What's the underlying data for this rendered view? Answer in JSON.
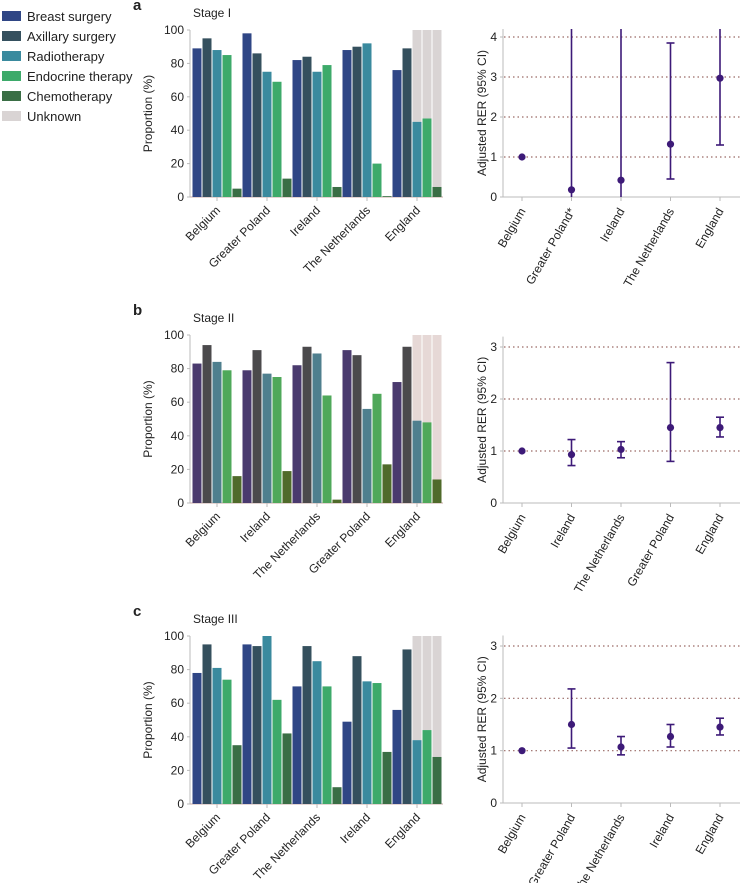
{
  "legend": {
    "items": [
      {
        "label": "Breast surgery",
        "color": "#2f4685"
      },
      {
        "label": "Axillary surgery",
        "color": "#35505e"
      },
      {
        "label": "Radiotherapy",
        "color": "#3a8a9e"
      },
      {
        "label": "Endocrine therapy",
        "color": "#3daa6a"
      },
      {
        "label": "Chemotherapy",
        "color": "#3a6e45"
      },
      {
        "label": "Unknown",
        "color": "#d9d4d4"
      }
    ]
  },
  "chart_data": [
    {
      "type": "bar",
      "panel": "a",
      "title": "Stage I",
      "ylabel": "Proportion (%)",
      "ylim": [
        0,
        100
      ],
      "yticks": [
        "0",
        "20",
        "40",
        "60",
        "80",
        "100"
      ],
      "categories": [
        "Belgium",
        "Greater Poland",
        "Ireland",
        "The Netherlands",
        "England"
      ],
      "colors": [
        "#2f4685",
        "#35505e",
        "#3a8a9e",
        "#3daa6a",
        "#3a6e45"
      ],
      "unknown_color": "#d9d4d4",
      "series": [
        {
          "name": "Breast surgery",
          "values": [
            89,
            98,
            82,
            88,
            76
          ]
        },
        {
          "name": "Axillary surgery",
          "values": [
            95,
            86,
            84,
            90,
            89
          ]
        },
        {
          "name": "Radiotherapy",
          "values": [
            88,
            75,
            75,
            92,
            45
          ]
        },
        {
          "name": "Endocrine therapy",
          "values": [
            85,
            69,
            79,
            20,
            47
          ]
        },
        {
          "name": "Chemotherapy",
          "values": [
            5,
            11,
            6,
            0.5,
            6
          ]
        }
      ],
      "unknown_to_100": {
        "category": "England",
        "series": [
          "Radiotherapy",
          "Endocrine therapy",
          "Chemotherapy"
        ]
      }
    },
    {
      "type": "scatter",
      "panel": "a",
      "ylabel": "Adjusted RER (95% CI)",
      "ylim": [
        0,
        4.2
      ],
      "yticks": [
        "0",
        "1",
        "2",
        "3",
        "4"
      ],
      "grid": "dotted",
      "categories": [
        "Belgium",
        "Greater Poland*",
        "Ireland",
        "The Netherlands",
        "England"
      ],
      "estimate": [
        1.0,
        0.18,
        0.42,
        1.32,
        2.97
      ],
      "lower": [
        null,
        0,
        0,
        0.45,
        1.3
      ],
      "upper": [
        null,
        4.2,
        4.2,
        3.85,
        4.2
      ],
      "color": "#3d1a78"
    },
    {
      "type": "bar",
      "panel": "b",
      "title": "Stage II",
      "ylabel": "Proportion (%)",
      "ylim": [
        0,
        100
      ],
      "yticks": [
        "0",
        "20",
        "40",
        "60",
        "80",
        "100"
      ],
      "categories": [
        "Belgium",
        "Ireland",
        "The Netherlands",
        "Greater Poland",
        "England"
      ],
      "colors": [
        "#4a3a6e",
        "#4b4a4c",
        "#4f7f8e",
        "#4fa85a",
        "#4f6a2a"
      ],
      "unknown_color": "#e6d8d6",
      "series": [
        {
          "name": "Breast surgery",
          "values": [
            83,
            79,
            82,
            91,
            72
          ]
        },
        {
          "name": "Axillary surgery",
          "values": [
            94,
            91,
            93,
            88,
            93
          ]
        },
        {
          "name": "Radiotherapy",
          "values": [
            84,
            77,
            89,
            56,
            49
          ]
        },
        {
          "name": "Endocrine therapy",
          "values": [
            79,
            75,
            64,
            65,
            48
          ]
        },
        {
          "name": "Chemotherapy",
          "values": [
            16,
            19,
            2,
            23,
            14
          ]
        }
      ],
      "unknown_to_100": {
        "category": "England",
        "series": [
          "Radiotherapy",
          "Endocrine therapy",
          "Chemotherapy"
        ]
      }
    },
    {
      "type": "scatter",
      "panel": "b",
      "ylabel": "Adjusted RER (95% CI)",
      "ylim": [
        0,
        3.2
      ],
      "yticks": [
        "0",
        "1",
        "2",
        "3"
      ],
      "grid": "dotted",
      "categories": [
        "Belgium",
        "Ireland",
        "The Netherlands",
        "Greater Poland",
        "England"
      ],
      "estimate": [
        1.0,
        0.93,
        1.03,
        1.45,
        1.45
      ],
      "lower": [
        null,
        0.72,
        0.87,
        0.8,
        1.27
      ],
      "upper": [
        null,
        1.22,
        1.18,
        2.7,
        1.65
      ],
      "color": "#3d1a78"
    },
    {
      "type": "bar",
      "panel": "c",
      "title": "Stage III",
      "ylabel": "Proportion (%)",
      "ylim": [
        0,
        100
      ],
      "yticks": [
        "0",
        "20",
        "40",
        "60",
        "80",
        "100"
      ],
      "categories": [
        "Belgium",
        "Greater Poland",
        "The Netherlands",
        "Ireland",
        "England"
      ],
      "colors": [
        "#2f4685",
        "#35505e",
        "#3a8a9e",
        "#3daa6a",
        "#3a6e45"
      ],
      "unknown_color": "#d9d4d4",
      "series": [
        {
          "name": "Breast surgery",
          "values": [
            78,
            95,
            70,
            49,
            56
          ]
        },
        {
          "name": "Axillary surgery",
          "values": [
            95,
            94,
            94,
            88,
            92
          ]
        },
        {
          "name": "Radiotherapy",
          "values": [
            81,
            100,
            85,
            73,
            38
          ]
        },
        {
          "name": "Endocrine therapy",
          "values": [
            74,
            62,
            70,
            72,
            44
          ]
        },
        {
          "name": "Chemotherapy",
          "values": [
            35,
            42,
            10,
            31,
            28
          ]
        }
      ],
      "unknown_to_100": {
        "category": "England",
        "series": [
          "Radiotherapy",
          "Endocrine therapy",
          "Chemotherapy"
        ]
      }
    },
    {
      "type": "scatter",
      "panel": "c",
      "ylabel": "Adjusted RER (95% CI)",
      "ylim": [
        0,
        3.2
      ],
      "yticks": [
        "0",
        "1",
        "2",
        "3"
      ],
      "grid": "dotted",
      "categories": [
        "Belgium",
        "Greater Poland",
        "The Netherlands",
        "Ireland",
        "England"
      ],
      "estimate": [
        1.0,
        1.5,
        1.07,
        1.27,
        1.45
      ],
      "lower": [
        null,
        1.05,
        0.92,
        1.07,
        1.3
      ],
      "upper": [
        null,
        2.18,
        1.27,
        1.5,
        1.62
      ],
      "color": "#3d1a78"
    }
  ]
}
